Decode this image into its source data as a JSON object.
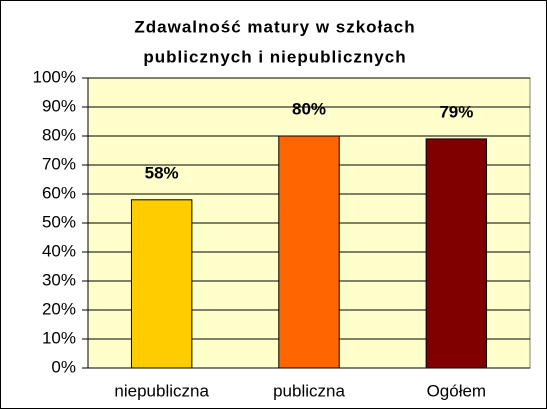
{
  "chart_data": {
    "type": "bar",
    "title": [
      "Zdawalność matury w szkołach",
      "publicznych i niepublicznych"
    ],
    "categories": [
      "niepubliczna",
      "publiczna",
      "Ogółem"
    ],
    "values": [
      58,
      80,
      79
    ],
    "value_labels": [
      "58%",
      "80%",
      "79%"
    ],
    "colors": [
      "#FFCC00",
      "#FF6600",
      "#800000"
    ],
    "ylim": [
      0,
      100
    ],
    "yticks": [
      {
        "value": 0,
        "label": "0%"
      },
      {
        "value": 10,
        "label": "10%"
      },
      {
        "value": 20,
        "label": "20%"
      },
      {
        "value": 30,
        "label": "30%"
      },
      {
        "value": 40,
        "label": "40%"
      },
      {
        "value": 50,
        "label": "50%"
      },
      {
        "value": 60,
        "label": "60%"
      },
      {
        "value": 70,
        "label": "70%"
      },
      {
        "value": 80,
        "label": "80%"
      },
      {
        "value": 90,
        "label": "90%"
      },
      {
        "value": 100,
        "label": "100%"
      }
    ],
    "grid": true,
    "plot_background": "#FFFFCC"
  }
}
